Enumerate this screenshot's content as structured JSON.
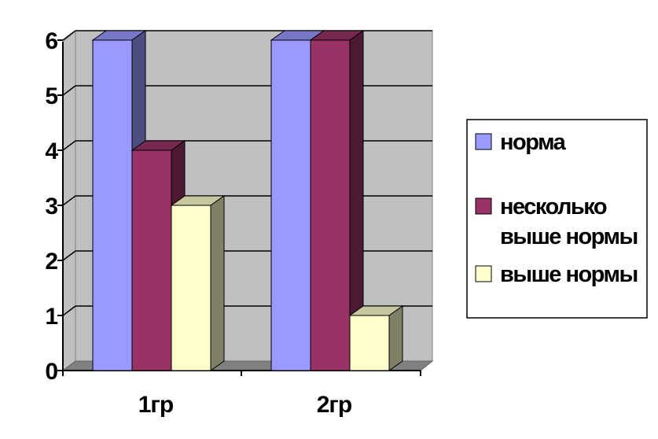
{
  "chart_data": {
    "type": "bar",
    "style": "3d-clustered-column",
    "categories": [
      "1гр",
      "2гр"
    ],
    "series": [
      {
        "name": "норма",
        "values": [
          6,
          6
        ],
        "color": "#9999ff"
      },
      {
        "name": "несколько выше нормы",
        "values": [
          4,
          6
        ],
        "color": "#993366"
      },
      {
        "name": "выше нормы",
        "values": [
          3,
          1
        ],
        "color": "#ffffcc"
      }
    ],
    "ylim": [
      0,
      6
    ],
    "yticks": [
      0,
      1,
      2,
      3,
      4,
      5,
      6
    ],
    "grid": true,
    "legend_position": "right",
    "wall_color": "#c0c0c0",
    "floor_color": "#808080"
  }
}
